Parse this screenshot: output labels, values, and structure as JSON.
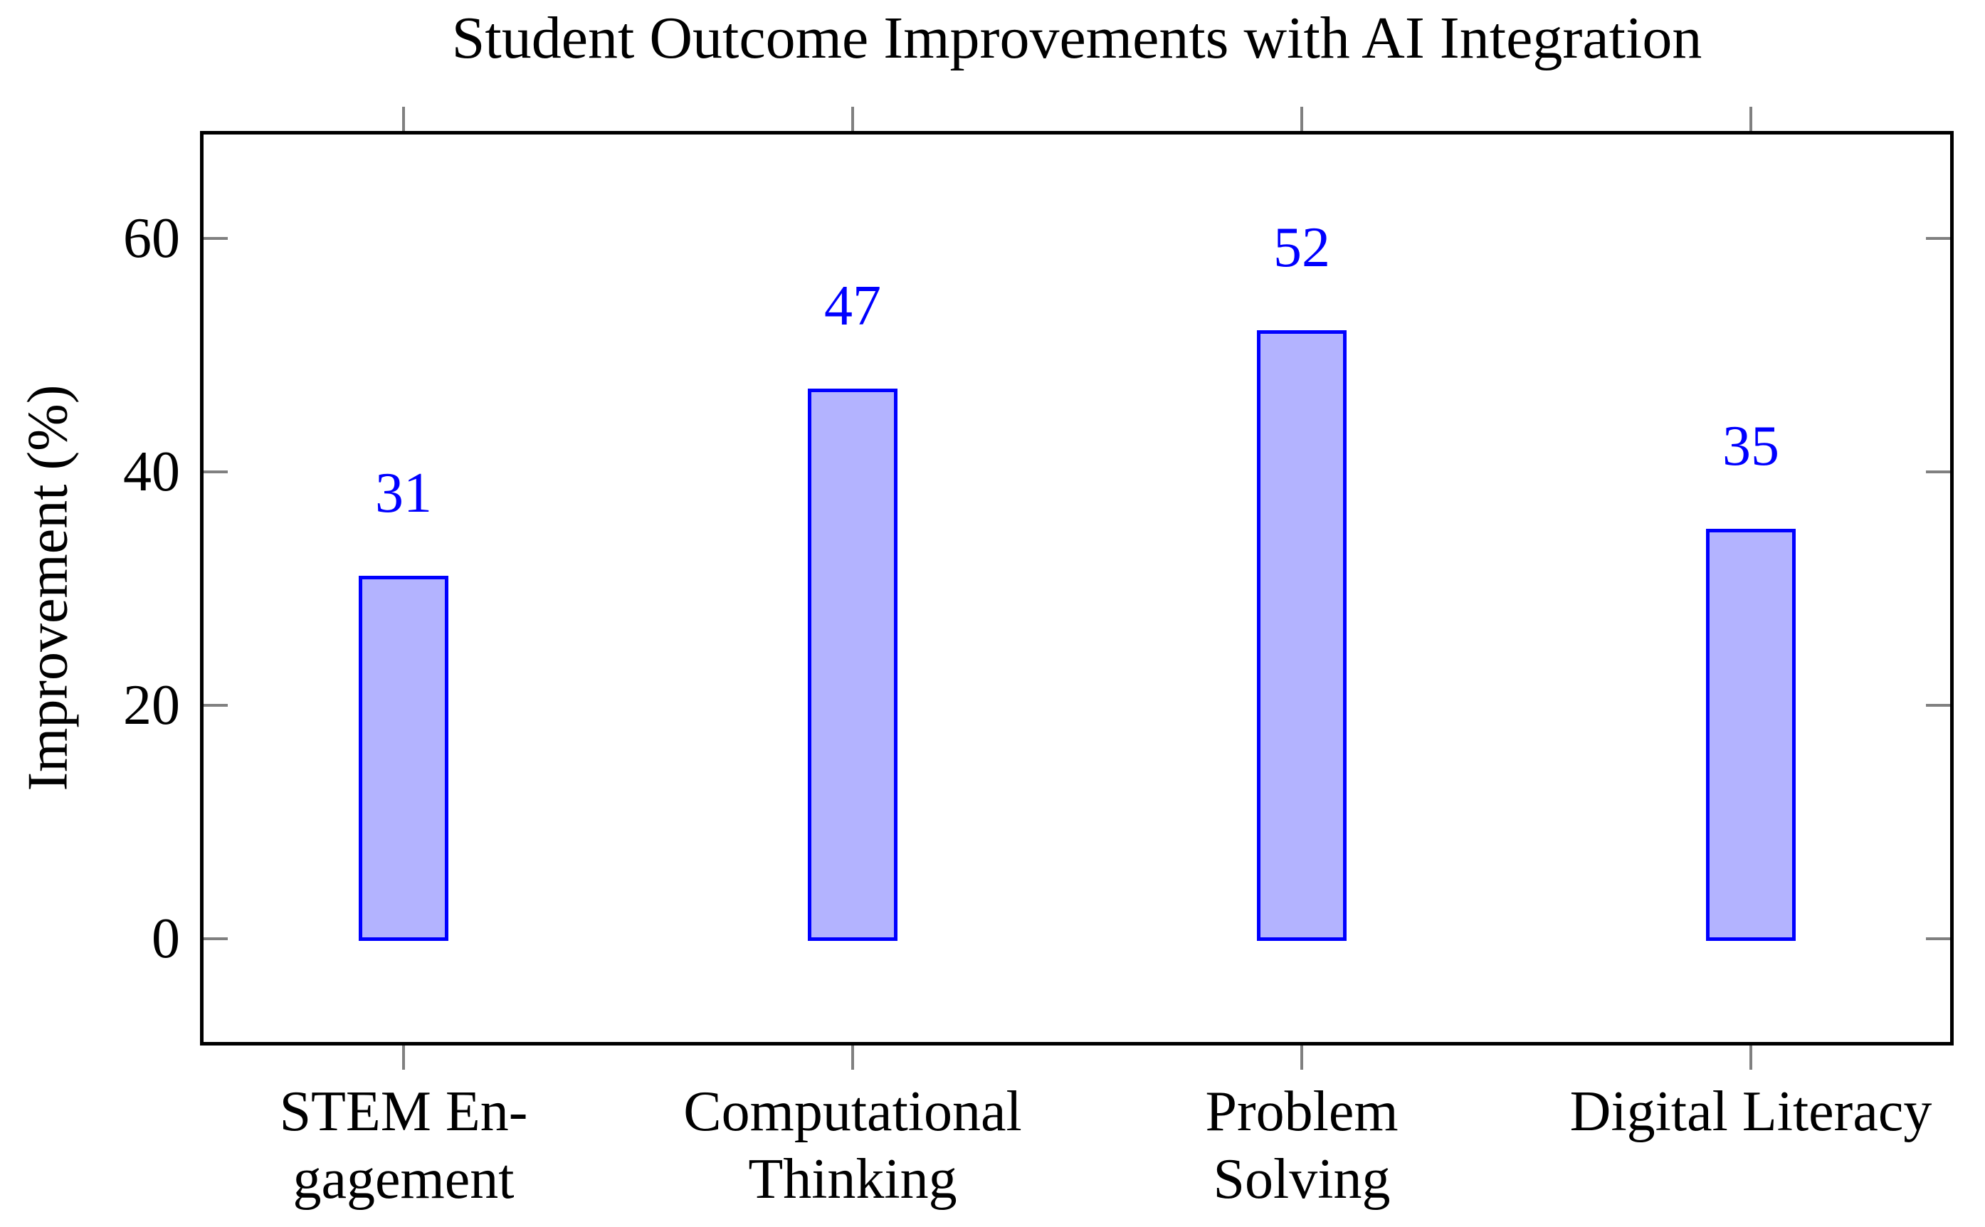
{
  "chart_data": {
    "type": "bar",
    "title": "Student Outcome Improvements with AI Integration",
    "ylabel": "Improvement (%)",
    "xlabel": "",
    "categories": [
      "STEM Engagement",
      "Computational Thinking",
      "Problem Solving",
      "Digital Literacy"
    ],
    "category_display_lines": [
      [
        "STEM En-",
        "gagement"
      ],
      [
        "Computational",
        "Thinking"
      ],
      [
        "Problem",
        "Solving"
      ],
      [
        "Digital Literacy"
      ]
    ],
    "values": [
      31,
      47,
      52,
      35
    ],
    "value_labels": [
      "31",
      "47",
      "52",
      "35"
    ],
    "yticks": [
      0,
      20,
      40,
      60
    ],
    "ylim": [
      -9,
      69
    ],
    "grid": false,
    "legend": null,
    "colors": {
      "bar_fill": "#b3b3ff",
      "bar_border": "#0000ff",
      "value_label": "#0000ff",
      "tick_mark": "#808080",
      "axis_frame": "#000000",
      "text": "#000000",
      "background": "#ffffff"
    }
  }
}
